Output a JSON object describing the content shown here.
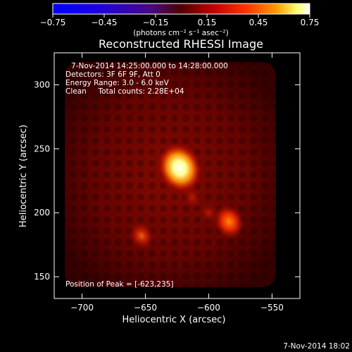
{
  "window": {
    "timestamp": "7-Nov-2014 18:02"
  },
  "colorbar": {
    "ticks": [
      "−0.75",
      "−0.45",
      "−0.15",
      "0.15",
      "0.45",
      "0.75"
    ],
    "unit_label": "(photons cm⁻² s⁻¹ asec⁻²)",
    "range": [
      -0.75,
      0.75
    ]
  },
  "plot": {
    "info_lines": [
      "7-Nov-2014 14:25:00.000 to 14:28:00.000",
      "Detectors: 3F 6F 9F, Att 0",
      "Energy Range: 3.0 - 6.0 keV",
      "Clean     Total counts: 2.28E+04"
    ],
    "peak_label": "Position of Peak = [-623,235]"
  },
  "chart_data": {
    "type": "heatmap",
    "title": "Reconstructed RHESSI Image",
    "xlabel": "Heliocentric X (arcsec)",
    "ylabel": "Heliocentric Y (arcsec)",
    "xlim": [
      -722,
      -528
    ],
    "ylim": [
      133,
      325
    ],
    "x_ticks": [
      -700,
      -650,
      -600,
      -550
    ],
    "x_tick_labels": [
      "−700",
      "−650",
      "−600",
      "−550"
    ],
    "y_ticks": [
      150,
      200,
      250,
      300
    ],
    "y_tick_labels": [
      "150",
      "200",
      "250",
      "300"
    ],
    "colormap": "red-temperature",
    "sources": [
      {
        "x": -623,
        "y": 235,
        "relative_intensity": 1.0
      },
      {
        "x": -584,
        "y": 193,
        "relative_intensity": 0.55
      },
      {
        "x": -653,
        "y": 182,
        "relative_intensity": 0.4
      },
      {
        "x": -613,
        "y": 212,
        "relative_intensity": 0.3
      },
      {
        "x": -600,
        "y": 200,
        "relative_intensity": 0.25
      }
    ]
  }
}
